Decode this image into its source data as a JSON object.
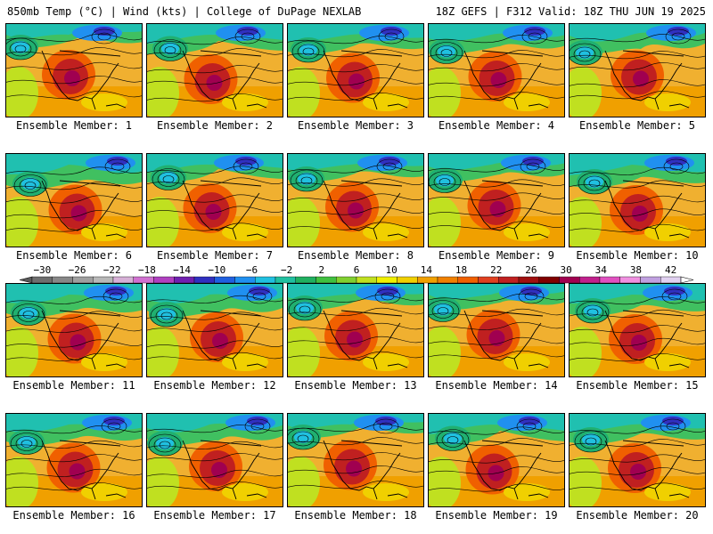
{
  "header": {
    "left": "850mb Temp (°C) | Wind (kts) | College of DuPage NEXLAB",
    "right": "18Z GEFS | F312 Valid: 18Z THU JUN 19 2025"
  },
  "colorbar": {
    "ticks": [
      "−30",
      "−26",
      "−22",
      "−18",
      "−14",
      "−10",
      "−6",
      "−2",
      "2",
      "6",
      "10",
      "14",
      "18",
      "22",
      "26",
      "30",
      "34",
      "38",
      "42"
    ],
    "colors": [
      "#6e6e6e",
      "#878787",
      "#9f9f9f",
      "#b8b8b8",
      "#d6b0d6",
      "#d070d0",
      "#b040c0",
      "#7020b0",
      "#3030c0",
      "#2060e0",
      "#2090f0",
      "#20c0e0",
      "#20c0a0",
      "#20b060",
      "#40c040",
      "#80d030",
      "#c0e020",
      "#f0f000",
      "#f0d000",
      "#f0a000",
      "#f08000",
      "#f06000",
      "#e04020",
      "#c02020",
      "#a01010",
      "#800000",
      "#a00050",
      "#c0208c",
      "#e050c0",
      "#f090e0",
      "#c0a0e0",
      "#e0d0f0"
    ]
  },
  "panels": [
    {
      "label": "Ensemble Member: 1"
    },
    {
      "label": "Ensemble Member: 2"
    },
    {
      "label": "Ensemble Member: 3"
    },
    {
      "label": "Ensemble Member: 4"
    },
    {
      "label": "Ensemble Member: 5"
    },
    {
      "label": "Ensemble Member: 6"
    },
    {
      "label": "Ensemble Member: 7"
    },
    {
      "label": "Ensemble Member: 8"
    },
    {
      "label": "Ensemble Member: 9"
    },
    {
      "label": "Ensemble Member: 10"
    },
    {
      "label": "Ensemble Member: 11"
    },
    {
      "label": "Ensemble Member: 12"
    },
    {
      "label": "Ensemble Member: 13"
    },
    {
      "label": "Ensemble Member: 14"
    },
    {
      "label": "Ensemble Member: 15"
    },
    {
      "label": "Ensemble Member: 16"
    },
    {
      "label": "Ensemble Member: 17"
    },
    {
      "label": "Ensemble Member: 18"
    },
    {
      "label": "Ensemble Member: 19"
    },
    {
      "label": "Ensemble Member: 20"
    }
  ]
}
